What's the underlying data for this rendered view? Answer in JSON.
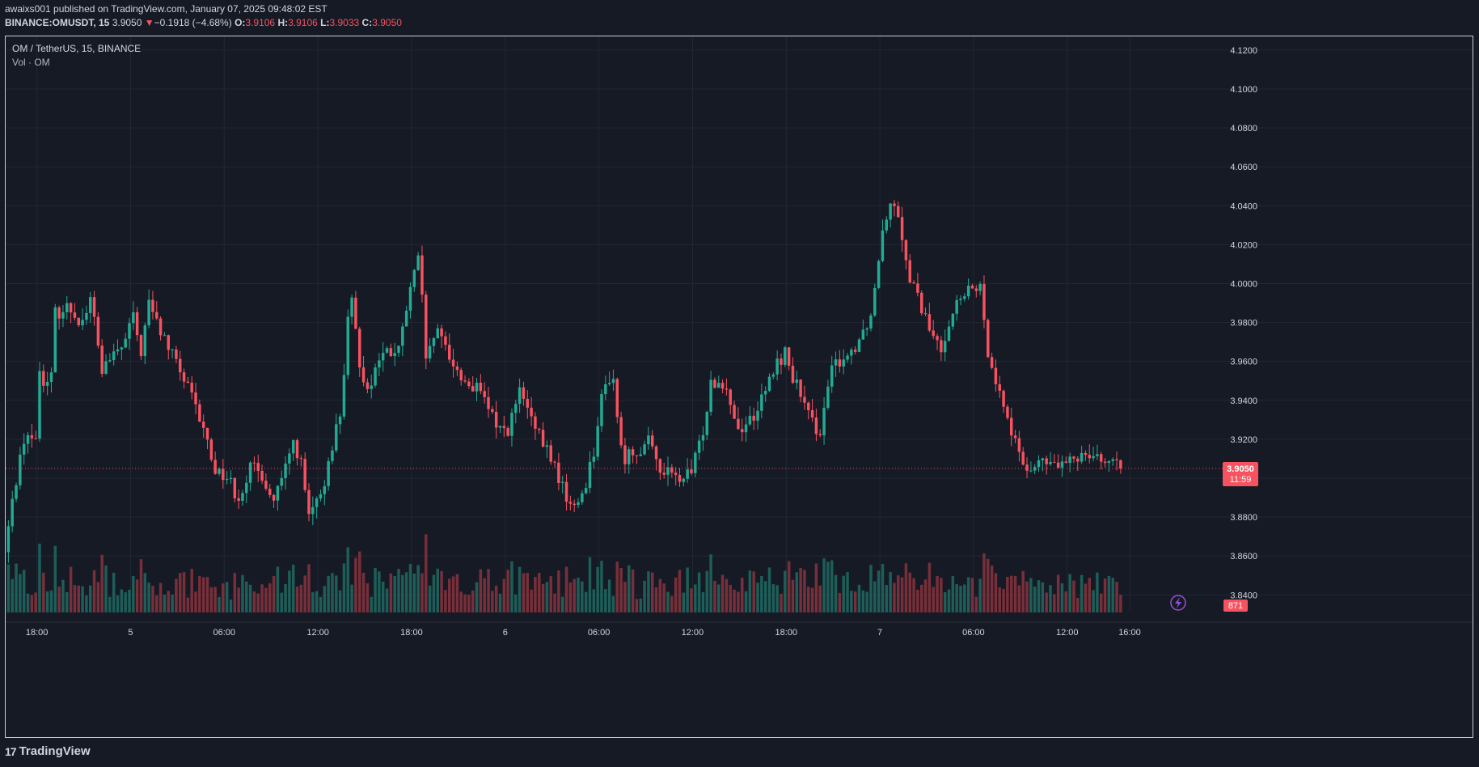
{
  "header": {
    "publisher_line": "awaixs001 published on TradingView.com, January 07, 2025 09:48:02 EST",
    "symbol": "BINANCE:OMUSDT, 15",
    "last": "3.9050",
    "change_arrow": "▼",
    "change": "−0.1918 (−4.68%)",
    "o_label": "O:",
    "o": "3.9106",
    "h_label": "H:",
    "h": "3.9106",
    "l_label": "L:",
    "l": "3.9033",
    "c_label": "C:",
    "c": "3.9050"
  },
  "legend": {
    "series": "OM / TetherUS, 15, BINANCE",
    "volume": "Vol · OM"
  },
  "footer": {
    "logo_mark": "17",
    "brand": "TradingView"
  },
  "colors": {
    "background": "#161a25",
    "grid": "#232734",
    "up": "#22ab94",
    "down": "#f7525f",
    "up_volume": "#1f6b62",
    "down_volume": "#8a343d",
    "axis_text": "#d1d4dc"
  },
  "chart_data": {
    "type": "candlestick",
    "interval_minutes": 15,
    "y_axis": {
      "ticks": [
        "3.8400",
        "3.8600",
        "3.8800",
        "3.9000",
        "3.9200",
        "3.9400",
        "3.9600",
        "3.9800",
        "4.0000",
        "4.0200",
        "4.0400",
        "4.0600",
        "4.0800",
        "4.1000",
        "4.1200"
      ],
      "range": [
        3.831,
        4.127
      ],
      "position": "right"
    },
    "x_axis": {
      "ticks": [
        {
          "label": "18:00",
          "hour": 0
        },
        {
          "label": "5",
          "hour": 6
        },
        {
          "label": "06:00",
          "hour": 12
        },
        {
          "label": "12:00",
          "hour": 18
        },
        {
          "label": "18:00",
          "hour": 24
        },
        {
          "label": "6",
          "hour": 30
        },
        {
          "label": "06:00",
          "hour": 36
        },
        {
          "label": "12:00",
          "hour": 42
        },
        {
          "label": "18:00",
          "hour": 48
        },
        {
          "label": "7",
          "hour": 54
        },
        {
          "label": "06:00",
          "hour": 60
        },
        {
          "label": "12:00",
          "hour": 66
        },
        {
          "label": "16:00",
          "hour": 70
        }
      ],
      "range_hours": [
        -2.0,
        75.7
      ]
    },
    "start_hour": -1.95,
    "price_path": [
      [
        -1.95,
        3.862
      ],
      [
        -1.2,
        3.9
      ],
      [
        -0.6,
        3.925
      ],
      [
        0.0,
        3.915
      ],
      [
        0.3,
        3.955
      ],
      [
        1.0,
        3.945
      ],
      [
        1.3,
        3.985
      ],
      [
        2.2,
        3.988
      ],
      [
        3.0,
        3.98
      ],
      [
        3.6,
        3.992
      ],
      [
        4.3,
        3.955
      ],
      [
        5.0,
        3.962
      ],
      [
        5.8,
        3.97
      ],
      [
        6.2,
        3.985
      ],
      [
        6.8,
        3.965
      ],
      [
        7.3,
        3.99
      ],
      [
        7.9,
        3.978
      ],
      [
        8.5,
        3.968
      ],
      [
        9.3,
        3.955
      ],
      [
        10.0,
        3.942
      ],
      [
        11.0,
        3.92
      ],
      [
        11.5,
        3.905
      ],
      [
        12.4,
        3.9
      ],
      [
        13.0,
        3.89
      ],
      [
        13.8,
        3.905
      ],
      [
        14.6,
        3.902
      ],
      [
        15.2,
        3.887
      ],
      [
        15.9,
        3.9
      ],
      [
        16.6,
        3.92
      ],
      [
        17.1,
        3.905
      ],
      [
        17.5,
        3.88
      ],
      [
        18.4,
        3.89
      ],
      [
        18.8,
        3.91
      ],
      [
        19.6,
        3.935
      ],
      [
        20.2,
        3.995
      ],
      [
        20.8,
        3.96
      ],
      [
        21.3,
        3.945
      ],
      [
        22.1,
        3.963
      ],
      [
        23.3,
        3.965
      ],
      [
        24.0,
        3.995
      ],
      [
        24.6,
        4.013
      ],
      [
        25.1,
        3.957
      ],
      [
        25.6,
        3.975
      ],
      [
        26.3,
        3.968
      ],
      [
        27.2,
        3.952
      ],
      [
        28.4,
        3.945
      ],
      [
        29.4,
        3.93
      ],
      [
        30.2,
        3.923
      ],
      [
        31.1,
        3.945
      ],
      [
        32.0,
        3.925
      ],
      [
        33.1,
        3.91
      ],
      [
        33.8,
        3.895
      ],
      [
        34.5,
        3.883
      ],
      [
        35.2,
        3.895
      ],
      [
        35.8,
        3.915
      ],
      [
        36.4,
        3.945
      ],
      [
        37.0,
        3.955
      ],
      [
        37.6,
        3.91
      ],
      [
        38.6,
        3.915
      ],
      [
        39.3,
        3.918
      ],
      [
        40.1,
        3.905
      ],
      [
        41.0,
        3.9
      ],
      [
        41.6,
        3.9
      ],
      [
        42.1,
        3.903
      ],
      [
        42.8,
        3.925
      ],
      [
        43.3,
        3.95
      ],
      [
        44.2,
        3.95
      ],
      [
        45.0,
        3.925
      ],
      [
        45.8,
        3.93
      ],
      [
        46.6,
        3.94
      ],
      [
        47.3,
        3.955
      ],
      [
        48.0,
        3.965
      ],
      [
        48.9,
        3.945
      ],
      [
        49.7,
        3.928
      ],
      [
        50.4,
        3.925
      ],
      [
        50.9,
        3.952
      ],
      [
        51.4,
        3.96
      ],
      [
        52.3,
        3.965
      ],
      [
        53.0,
        3.975
      ],
      [
        53.6,
        3.985
      ],
      [
        54.3,
        4.03
      ],
      [
        54.9,
        4.045
      ],
      [
        55.4,
        4.035
      ],
      [
        55.8,
        4.01
      ],
      [
        56.4,
        3.995
      ],
      [
        56.9,
        3.985
      ],
      [
        57.4,
        3.975
      ],
      [
        58.0,
        3.965
      ],
      [
        58.5,
        3.98
      ],
      [
        59.1,
        3.99
      ],
      [
        59.8,
        3.995
      ],
      [
        60.5,
        4.0
      ],
      [
        60.9,
        3.97
      ],
      [
        61.3,
        3.96
      ],
      [
        61.9,
        3.94
      ],
      [
        62.4,
        3.93
      ],
      [
        63.0,
        3.91
      ],
      [
        63.8,
        3.905
      ],
      [
        64.5,
        3.908
      ],
      [
        65.3,
        3.907
      ],
      [
        66.0,
        3.906
      ],
      [
        66.6,
        3.91
      ],
      [
        67.3,
        3.915
      ],
      [
        68.1,
        3.912
      ],
      [
        69.0,
        3.906
      ],
      [
        69.4,
        3.905
      ]
    ],
    "last_price": {
      "value": 3.905,
      "label": "3.9050",
      "countdown": "11:59"
    },
    "volume": {
      "last_label": "871",
      "max": 7000,
      "scale_note": "volume pane overlays bottom of price pane"
    },
    "grid": true,
    "legend_position": "top-left"
  }
}
